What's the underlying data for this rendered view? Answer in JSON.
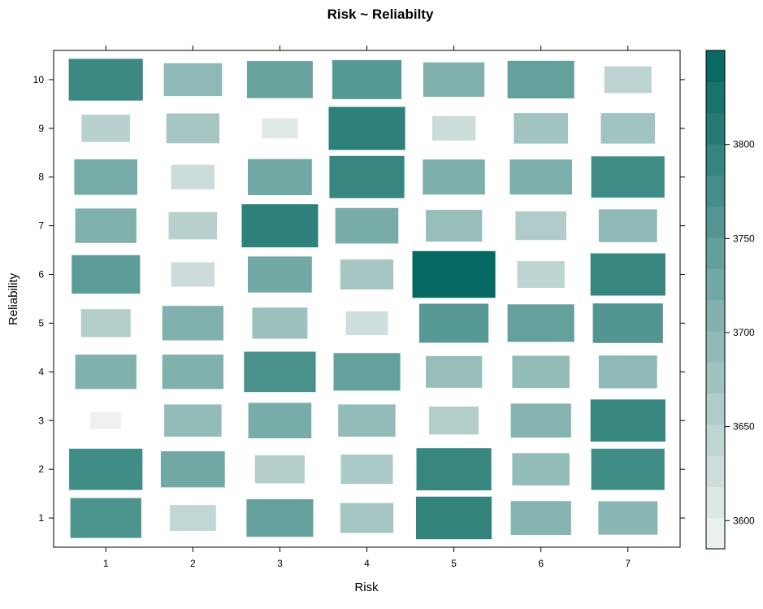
{
  "chart_data": {
    "type": "heatmap",
    "title": "Risk ~ Reliabilty",
    "xlabel": "Risk",
    "ylabel": "Reliability",
    "x_categories": [
      1,
      2,
      3,
      4,
      5,
      6,
      7
    ],
    "y_categories": [
      1,
      2,
      3,
      4,
      5,
      6,
      7,
      8,
      9,
      10
    ],
    "values_by_row": [
      [
        3765,
        3640,
        3740,
        3670,
        3795,
        3705,
        3700
      ],
      [
        3780,
        3725,
        3655,
        3665,
        3790,
        3690,
        3780
      ],
      [
        3590,
        3690,
        3720,
        3690,
        3655,
        3705,
        3790
      ],
      [
        3710,
        3710,
        3770,
        3740,
        3685,
        3690,
        3695
      ],
      [
        3655,
        3710,
        3680,
        3625,
        3755,
        3740,
        3760
      ],
      [
        3750,
        3630,
        3725,
        3670,
        3845,
        3645,
        3790
      ],
      [
        3710,
        3650,
        3800,
        3720,
        3685,
        3660,
        3695
      ],
      [
        3720,
        3630,
        3725,
        3790,
        3715,
        3715,
        3780
      ],
      [
        3650,
        3670,
        3605,
        3800,
        3630,
        3675,
        3675
      ],
      [
        3785,
        3695,
        3735,
        3755,
        3710,
        3740,
        3645
      ]
    ],
    "colorbar": {
      "min": 3585,
      "max": 3850,
      "ticks": [
        3600,
        3650,
        3700,
        3750,
        3800
      ],
      "low_color": "#f4f4f4",
      "high_color": "#00665e"
    },
    "grid": false,
    "legend": "colorbar-right"
  }
}
